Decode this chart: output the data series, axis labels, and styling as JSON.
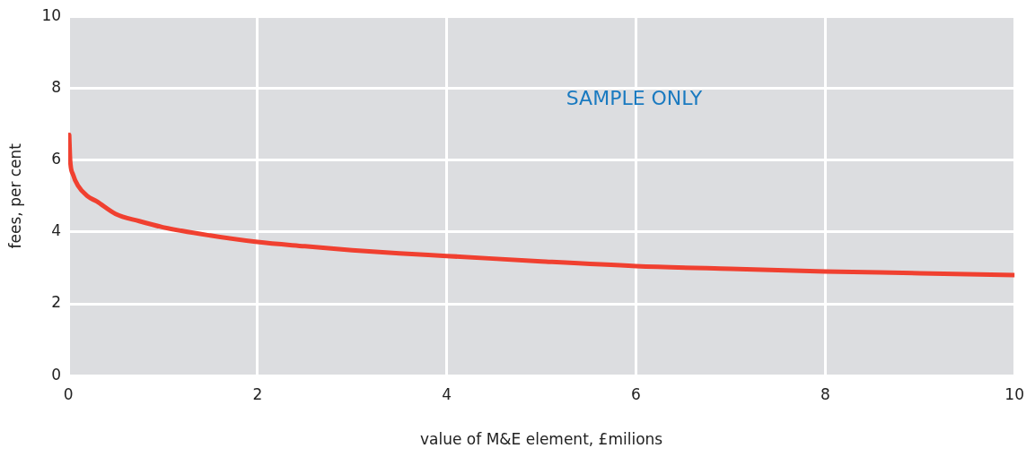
{
  "chart_data": {
    "type": "line",
    "xlabel": "value of M&E element, £milions",
    "ylabel": "fees, per cent",
    "annotations": [
      "SAMPLE ONLY"
    ],
    "series": [
      {
        "color": "#f04030",
        "x": [
          0.01,
          0.02,
          0.05,
          0.1,
          0.2,
          0.3,
          0.5,
          0.75,
          1,
          1.5,
          2,
          2.5,
          3,
          3.5,
          4,
          5,
          6,
          7,
          8,
          9,
          10
        ],
        "values": [
          6.7,
          6.0,
          5.6,
          5.3,
          5.0,
          4.85,
          4.5,
          4.3,
          4.13,
          3.9,
          3.72,
          3.6,
          3.49,
          3.4,
          3.33,
          3.18,
          3.05,
          2.97,
          2.9,
          2.85,
          2.8
        ]
      }
    ],
    "xlim": [
      0,
      10
    ],
    "xticks": [
      0,
      2,
      4,
      6,
      8,
      10
    ],
    "ylim": [
      0,
      10
    ],
    "yticks": [
      0,
      2,
      4,
      6,
      8,
      10
    ],
    "grid": true,
    "legend": false,
    "marker": "none",
    "line_style": "solid"
  }
}
